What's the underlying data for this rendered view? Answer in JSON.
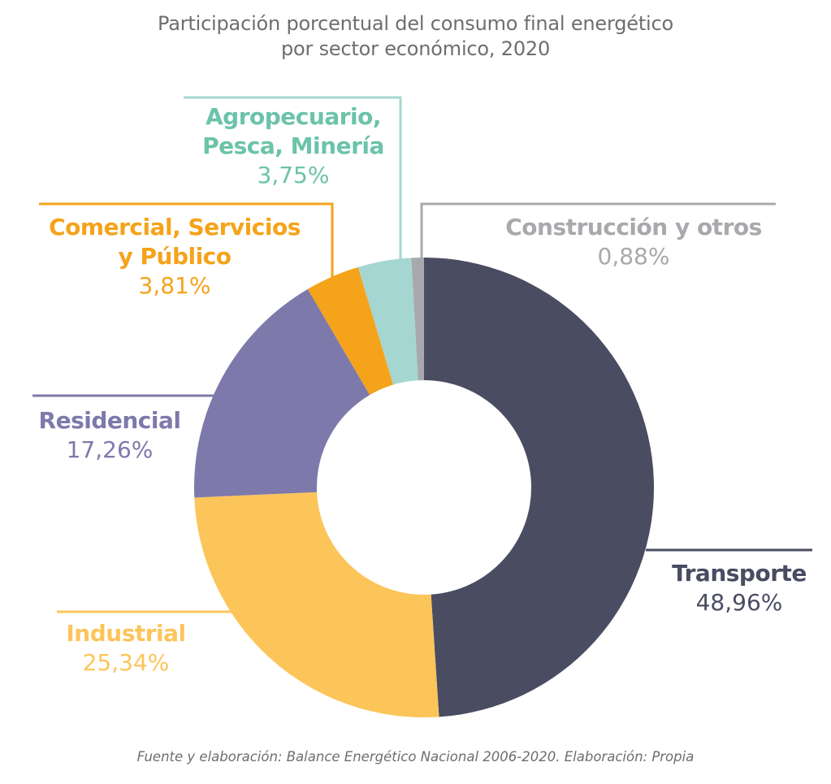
{
  "chart_data": {
    "type": "pie",
    "subtype": "donut",
    "title": "Participación porcentual del consumo final energético por sector económico, 2020",
    "title_lines": [
      "Participación porcentual del consumo final energético",
      "por sector económico, 2020"
    ],
    "unit": "%",
    "slices": [
      {
        "key": "transporte",
        "name_lines": [
          "Transporte"
        ],
        "label": "Transporte",
        "value": 48.96,
        "value_text": "48,96%",
        "color": "#4a4c62"
      },
      {
        "key": "industrial",
        "name_lines": [
          "Industrial"
        ],
        "label": "Industrial",
        "value": 25.34,
        "value_text": "25,34%",
        "color": "#fcc55a"
      },
      {
        "key": "residencial",
        "name_lines": [
          "Residencial"
        ],
        "label": "Residencial",
        "value": 17.26,
        "value_text": "17,26%",
        "color": "#7e79ab"
      },
      {
        "key": "comercial",
        "name_lines": [
          "Comercial, Servicios",
          "y Público"
        ],
        "label": "Comercial, Servicios y Público",
        "value": 3.81,
        "value_text": "3,81%",
        "color": "#f5a31a"
      },
      {
        "key": "agro",
        "name_lines": [
          "Agropecuario,",
          "Pesca, Minería"
        ],
        "label": "Agropecuario, Pesca, Minería",
        "value": 3.75,
        "value_text": "3,75%",
        "color": "#a5d6d2"
      },
      {
        "key": "construccion",
        "name_lines": [
          "Construcción y otros"
        ],
        "label": "Construcción y otros",
        "value": 0.88,
        "value_text": "0,88%",
        "color": "#a7a9ac"
      }
    ],
    "label_colors": {
      "transporte": "#4a4c62",
      "industrial": "#fcc55a",
      "residencial": "#7e79ab",
      "comercial": "#f5a31a",
      "agro": "#6cc3a9",
      "construccion": "#a7a9ac"
    },
    "start_angle": "12 o'clock",
    "direction": "clockwise",
    "legend": "none (direct labels with leader lines)"
  },
  "footer": {
    "source": "Fuente y elaboración: Balance Energético Nacional 2006-2020. Elaboración: Propia"
  }
}
